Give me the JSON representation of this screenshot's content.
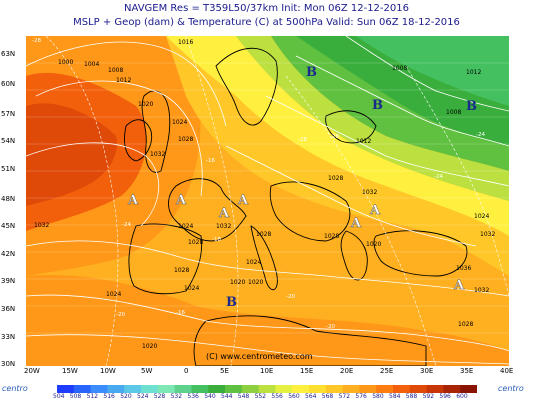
{
  "header": {
    "line1": "NAVGEM Res = T359L50/37km   Init: Mon 06Z 12-12-2016",
    "line2": "MSLP + Geop (dam) & Temperature (C) at 500hPa  Valid: Sun 06Z 18-12-2016"
  },
  "credit": "(C) www.centrometeo.com",
  "logo": "centro",
  "lat_labels": [
    "63N",
    "60N",
    "57N",
    "54N",
    "51N",
    "48N",
    "45N",
    "42N",
    "39N",
    "36N",
    "33N",
    "30N"
  ],
  "lon_labels": [
    "20W",
    "15W",
    "10W",
    "5W",
    "0",
    "5E",
    "10E",
    "15E",
    "20E",
    "25E",
    "30E",
    "35E",
    "40E"
  ],
  "legend": {
    "values": [
      "504",
      "508",
      "512",
      "516",
      "520",
      "524",
      "528",
      "532",
      "536",
      "540",
      "544",
      "548",
      "552",
      "556",
      "560",
      "564",
      "568",
      "572",
      "576",
      "580",
      "584",
      "588",
      "592",
      "596",
      "600"
    ],
    "colors": [
      "#1e3cff",
      "#2a64ff",
      "#3a8cff",
      "#4aaaf0",
      "#5ac8e6",
      "#6ee0d2",
      "#7ee8b4",
      "#5ed28c",
      "#44c060",
      "#3aae3c",
      "#60c040",
      "#8cd040",
      "#bce040",
      "#e6f040",
      "#fff040",
      "#ffe030",
      "#ffc828",
      "#ffb020",
      "#ff9818",
      "#ff7c10",
      "#f2600c",
      "#e04a08",
      "#c83606",
      "#a82404",
      "#8a1402"
    ]
  },
  "isobars": [
    "1016",
    "1000",
    "1004",
    "1008",
    "1012",
    "1020",
    "1024",
    "1028",
    "1032",
    "1032",
    "1028",
    "1024",
    "1032",
    "1028",
    "1028",
    "1024",
    "1020",
    "1028",
    "1032",
    "1020",
    "1012",
    "1008",
    "1012",
    "1008",
    "1028",
    "1032",
    "1024",
    "1036",
    "1032",
    "1028",
    "1020",
    "1024",
    "1020",
    "1024"
  ],
  "isotherms": [
    "-28",
    "-24",
    "-16",
    "-18",
    "-20",
    "-28",
    "-28",
    "-24",
    "-24",
    "-20",
    "-20",
    "-16"
  ],
  "pressure_centers": {
    "high": "A",
    "low": "B"
  }
}
